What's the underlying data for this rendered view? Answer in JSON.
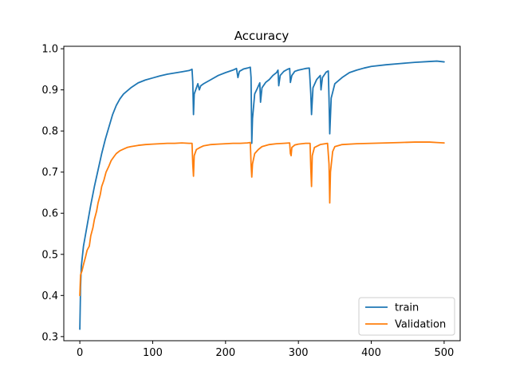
{
  "chart_data": {
    "type": "line",
    "title": "Accuracy",
    "xlabel": "",
    "ylabel": "",
    "xlim": [
      -22,
      522
    ],
    "ylim": [
      0.29,
      1.006
    ],
    "x_ticks": [
      0,
      100,
      200,
      300,
      400,
      500
    ],
    "x_tick_labels": [
      "0",
      "100",
      "200",
      "300",
      "400",
      "500"
    ],
    "y_ticks": [
      0.3,
      0.4,
      0.5,
      0.6,
      0.7,
      0.8,
      0.9,
      1.0
    ],
    "y_tick_labels": [
      "0.3",
      "0.4",
      "0.5",
      "0.6",
      "0.7",
      "0.8",
      "0.9",
      "1.0"
    ],
    "grid": false,
    "legend_position": "lower-right",
    "series": [
      {
        "name": "train",
        "color": "#1f77b4",
        "points": [
          [
            0,
            0.318
          ],
          [
            1,
            0.42
          ],
          [
            2,
            0.47
          ],
          [
            5,
            0.52
          ],
          [
            10,
            0.57
          ],
          [
            15,
            0.62
          ],
          [
            20,
            0.665
          ],
          [
            25,
            0.705
          ],
          [
            30,
            0.745
          ],
          [
            35,
            0.78
          ],
          [
            40,
            0.81
          ],
          [
            45,
            0.84
          ],
          [
            50,
            0.862
          ],
          [
            55,
            0.878
          ],
          [
            60,
            0.89
          ],
          [
            70,
            0.905
          ],
          [
            80,
            0.917
          ],
          [
            90,
            0.924
          ],
          [
            100,
            0.929
          ],
          [
            110,
            0.934
          ],
          [
            120,
            0.938
          ],
          [
            130,
            0.941
          ],
          [
            140,
            0.944
          ],
          [
            150,
            0.947
          ],
          [
            154,
            0.95
          ],
          [
            155,
            0.92
          ],
          [
            156,
            0.84
          ],
          [
            157,
            0.89
          ],
          [
            160,
            0.905
          ],
          [
            162,
            0.915
          ],
          [
            164,
            0.9
          ],
          [
            166,
            0.91
          ],
          [
            170,
            0.915
          ],
          [
            180,
            0.925
          ],
          [
            190,
            0.935
          ],
          [
            200,
            0.942
          ],
          [
            210,
            0.948
          ],
          [
            215,
            0.952
          ],
          [
            217,
            0.93
          ],
          [
            219,
            0.945
          ],
          [
            225,
            0.951
          ],
          [
            230,
            0.953
          ],
          [
            234,
            0.955
          ],
          [
            235,
            0.93
          ],
          [
            236,
            0.77
          ],
          [
            237,
            0.83
          ],
          [
            240,
            0.89
          ],
          [
            244,
            0.905
          ],
          [
            247,
            0.917
          ],
          [
            248,
            0.87
          ],
          [
            250,
            0.905
          ],
          [
            255,
            0.918
          ],
          [
            260,
            0.925
          ],
          [
            265,
            0.935
          ],
          [
            270,
            0.942
          ],
          [
            272,
            0.948
          ],
          [
            273,
            0.91
          ],
          [
            275,
            0.935
          ],
          [
            280,
            0.945
          ],
          [
            285,
            0.95
          ],
          [
            288,
            0.952
          ],
          [
            289,
            0.918
          ],
          [
            291,
            0.935
          ],
          [
            295,
            0.945
          ],
          [
            300,
            0.948
          ],
          [
            305,
            0.95
          ],
          [
            310,
            0.952
          ],
          [
            315,
            0.953
          ],
          [
            317,
            0.89
          ],
          [
            318,
            0.84
          ],
          [
            320,
            0.905
          ],
          [
            325,
            0.925
          ],
          [
            330,
            0.935
          ],
          [
            331,
            0.9
          ],
          [
            333,
            0.93
          ],
          [
            338,
            0.943
          ],
          [
            341,
            0.946
          ],
          [
            342,
            0.88
          ],
          [
            343,
            0.793
          ],
          [
            345,
            0.88
          ],
          [
            350,
            0.915
          ],
          [
            360,
            0.93
          ],
          [
            370,
            0.942
          ],
          [
            380,
            0.948
          ],
          [
            390,
            0.953
          ],
          [
            400,
            0.957
          ],
          [
            420,
            0.961
          ],
          [
            440,
            0.964
          ],
          [
            460,
            0.967
          ],
          [
            480,
            0.969
          ],
          [
            490,
            0.97
          ],
          [
            495,
            0.969
          ],
          [
            500,
            0.968
          ]
        ]
      },
      {
        "name": "Validation",
        "color": "#ff7f0e",
        "points": [
          [
            0,
            0.4
          ],
          [
            1,
            0.45
          ],
          [
            3,
            0.46
          ],
          [
            5,
            0.475
          ],
          [
            8,
            0.495
          ],
          [
            10,
            0.51
          ],
          [
            13,
            0.52
          ],
          [
            15,
            0.545
          ],
          [
            18,
            0.565
          ],
          [
            20,
            0.585
          ],
          [
            23,
            0.605
          ],
          [
            25,
            0.625
          ],
          [
            28,
            0.645
          ],
          [
            30,
            0.665
          ],
          [
            33,
            0.68
          ],
          [
            36,
            0.7
          ],
          [
            40,
            0.715
          ],
          [
            43,
            0.728
          ],
          [
            47,
            0.738
          ],
          [
            50,
            0.745
          ],
          [
            55,
            0.752
          ],
          [
            60,
            0.756
          ],
          [
            65,
            0.76
          ],
          [
            70,
            0.762
          ],
          [
            80,
            0.765
          ],
          [
            90,
            0.767
          ],
          [
            100,
            0.768
          ],
          [
            110,
            0.769
          ],
          [
            120,
            0.77
          ],
          [
            130,
            0.77
          ],
          [
            140,
            0.771
          ],
          [
            150,
            0.77
          ],
          [
            154,
            0.77
          ],
          [
            155,
            0.72
          ],
          [
            156,
            0.69
          ],
          [
            157,
            0.74
          ],
          [
            160,
            0.755
          ],
          [
            165,
            0.76
          ],
          [
            170,
            0.764
          ],
          [
            180,
            0.767
          ],
          [
            190,
            0.768
          ],
          [
            200,
            0.769
          ],
          [
            210,
            0.77
          ],
          [
            220,
            0.77
          ],
          [
            230,
            0.771
          ],
          [
            234,
            0.772
          ],
          [
            235,
            0.72
          ],
          [
            236,
            0.688
          ],
          [
            237,
            0.72
          ],
          [
            240,
            0.745
          ],
          [
            245,
            0.755
          ],
          [
            250,
            0.762
          ],
          [
            260,
            0.767
          ],
          [
            270,
            0.769
          ],
          [
            280,
            0.77
          ],
          [
            288,
            0.771
          ],
          [
            289,
            0.745
          ],
          [
            290,
            0.74
          ],
          [
            291,
            0.76
          ],
          [
            295,
            0.766
          ],
          [
            300,
            0.768
          ],
          [
            310,
            0.77
          ],
          [
            316,
            0.77
          ],
          [
            317,
            0.71
          ],
          [
            318,
            0.665
          ],
          [
            319,
            0.74
          ],
          [
            322,
            0.76
          ],
          [
            330,
            0.767
          ],
          [
            340,
            0.77
          ],
          [
            342,
            0.72
          ],
          [
            343,
            0.625
          ],
          [
            344,
            0.7
          ],
          [
            347,
            0.75
          ],
          [
            350,
            0.762
          ],
          [
            360,
            0.767
          ],
          [
            380,
            0.769
          ],
          [
            400,
            0.77
          ],
          [
            420,
            0.771
          ],
          [
            440,
            0.772
          ],
          [
            460,
            0.773
          ],
          [
            480,
            0.773
          ],
          [
            490,
            0.772
          ],
          [
            500,
            0.771
          ]
        ]
      }
    ]
  }
}
